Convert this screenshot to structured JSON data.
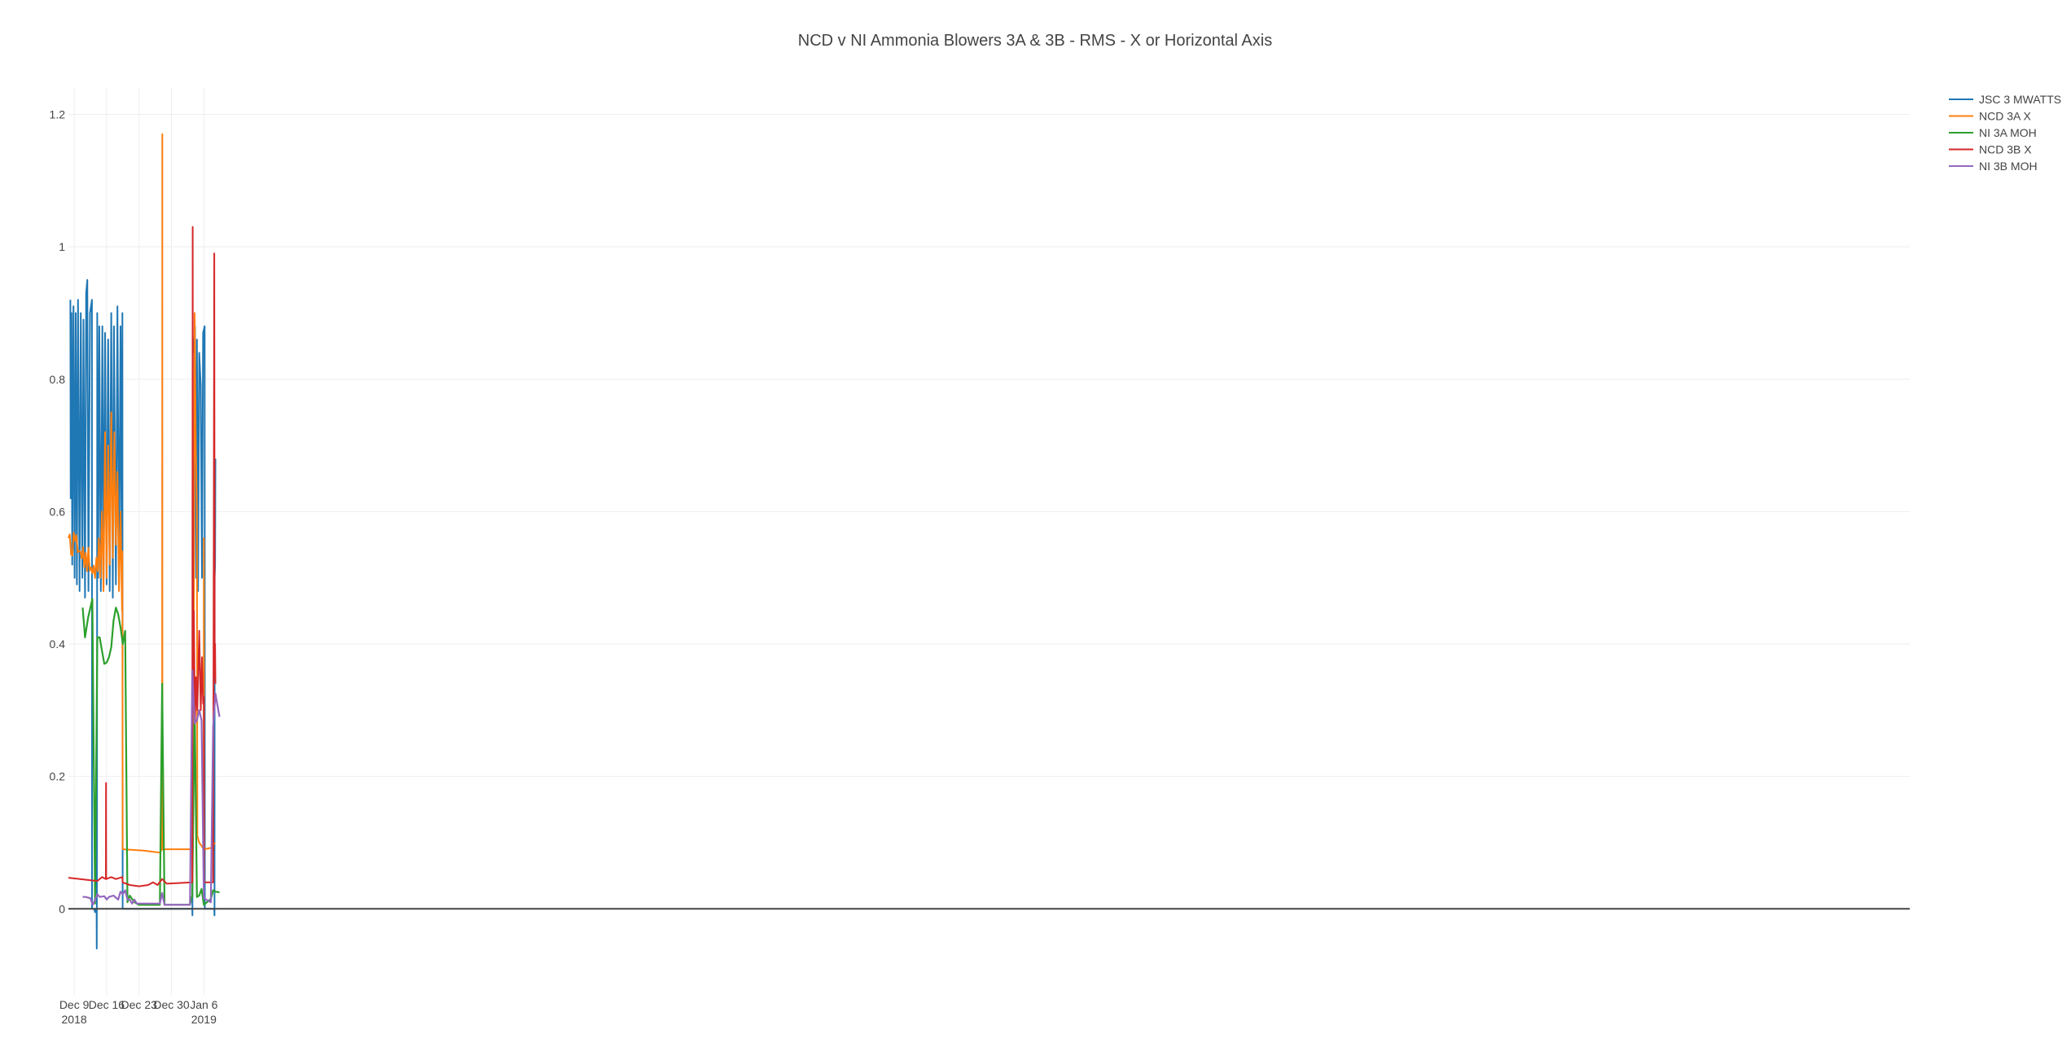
{
  "chart_data": {
    "type": "line",
    "title": "NCD v NI Ammonia Blowers 3A & 3B - RMS - X or Horizontal Axis",
    "xlabel": "",
    "ylabel": "",
    "x_range": [
      "2017-12-07 18:00",
      "2019-01-09 09:00"
    ],
    "ylim": [
      -0.13,
      1.24
    ],
    "grid": true,
    "legend_position": "top-right",
    "y_ticks": [
      {
        "value": 0,
        "label": "0"
      },
      {
        "value": 0.2,
        "label": "0.2"
      },
      {
        "value": 0.4,
        "label": "0.4"
      },
      {
        "value": 0.6,
        "label": "0.6"
      },
      {
        "value": 0.8,
        "label": "0.8"
      },
      {
        "value": 1,
        "label": "1"
      },
      {
        "value": 1.2,
        "label": "1.2"
      }
    ],
    "x_ticks": [
      {
        "date": "2017-12-09",
        "label": "Dec 9",
        "sublabel": "2018"
      },
      {
        "date": "2017-12-16",
        "label": "Dec 16",
        "sublabel": ""
      },
      {
        "date": "2017-12-23",
        "label": "Dec 23",
        "sublabel": ""
      },
      {
        "date": "2017-12-30",
        "label": "Dec 30",
        "sublabel": ""
      },
      {
        "date": "2018-01-06",
        "label": "Jan 6",
        "sublabel": "2019"
      }
    ],
    "series": [
      {
        "name": "JSC 3 MWATTS",
        "color": "#1f77b4",
        "style": "dense",
        "points": [
          [
            "2017-12-08 04:00",
            0.92
          ],
          [
            "2017-12-08 06:00",
            0.62
          ],
          [
            "2017-12-08 10:00",
            0.9
          ],
          [
            "2017-12-08 14:00",
            0.52
          ],
          [
            "2017-12-08 20:00",
            0.91
          ],
          [
            "2017-12-09 02:00",
            0.5
          ],
          [
            "2017-12-09 08:00",
            0.9
          ],
          [
            "2017-12-09 14:00",
            0.49
          ],
          [
            "2017-12-09 20:00",
            0.92
          ],
          [
            "2017-12-10 04:00",
            0.48
          ],
          [
            "2017-12-10 10:00",
            0.9
          ],
          [
            "2017-12-10 18:00",
            0.5
          ],
          [
            "2017-12-11 00:00",
            0.89
          ],
          [
            "2017-12-11 08:00",
            0.47
          ],
          [
            "2017-12-11 14:00",
            0.93
          ],
          [
            "2017-12-11 20:00",
            0.95
          ],
          [
            "2017-12-12 02:00",
            0.48
          ],
          [
            "2017-12-12 10:00",
            0.9
          ],
          [
            "2017-12-12 20:00",
            0.92
          ],
          [
            "2017-12-12 20:30",
            0.0
          ],
          [
            "2017-12-13 08:00",
            0.0
          ],
          [
            "2017-12-13 12:00",
            -0.005
          ],
          [
            "2017-12-13 16:00",
            0.0
          ],
          [
            "2017-12-13 20:00",
            0.0
          ],
          [
            "2017-12-13 21:00",
            -0.06
          ],
          [
            "2017-12-13 22:00",
            0.1
          ],
          [
            "2017-12-13 23:30",
            0.9
          ],
          [
            "2017-12-14 04:00",
            0.5
          ],
          [
            "2017-12-14 10:00",
            0.88
          ],
          [
            "2017-12-14 18:00",
            0.48
          ],
          [
            "2017-12-15 02:00",
            0.88
          ],
          [
            "2017-12-15 08:00",
            0.5
          ],
          [
            "2017-12-15 16:00",
            0.87
          ],
          [
            "2017-12-16 00:00",
            0.49
          ],
          [
            "2017-12-16 08:00",
            0.86
          ],
          [
            "2017-12-16 16:00",
            0.48
          ],
          [
            "2017-12-17 00:00",
            0.9
          ],
          [
            "2017-12-17 08:00",
            0.47
          ],
          [
            "2017-12-17 14:00",
            0.88
          ],
          [
            "2017-12-18 00:00",
            0.49
          ],
          [
            "2017-12-18 08:00",
            0.91
          ],
          [
            "2017-12-18 16:00",
            0.5
          ],
          [
            "2017-12-19 00:00",
            0.88
          ],
          [
            "2017-12-19 06:00",
            0.52
          ],
          [
            "2017-12-19 10:00",
            0.9
          ],
          [
            "2017-12-19 11:00",
            0.0
          ],
          [
            "2017-12-27 08:00",
            0.0
          ],
          [
            "2018-01-03 12:00",
            0.0
          ],
          [
            "2018-01-03 13:00",
            -0.01
          ],
          [
            "2018-01-03 14:00",
            0.86
          ],
          [
            "2018-01-03 20:00",
            0.84
          ],
          [
            "2018-01-04 02:00",
            0.88
          ],
          [
            "2018-01-04 08:00",
            0.5
          ],
          [
            "2018-01-04 12:00",
            0.86
          ],
          [
            "2018-01-04 18:00",
            0.48
          ],
          [
            "2018-01-05 00:00",
            0.84
          ],
          [
            "2018-01-05 08:00",
            0.79
          ],
          [
            "2018-01-05 14:00",
            0.5
          ],
          [
            "2018-01-05 20:00",
            0.87
          ],
          [
            "2018-01-06 04:00",
            0.88
          ],
          [
            "2018-01-06 05:00",
            0.0
          ],
          [
            "2018-01-08 06:00",
            0.0
          ],
          [
            "2018-01-08 07:00",
            -0.01
          ],
          [
            "2018-01-08 08:00",
            0.5
          ],
          [
            "2018-01-08 10:00",
            0.52
          ],
          [
            "2018-01-08 12:00",
            0.68
          ]
        ]
      },
      {
        "name": "NCD 3A X",
        "color": "#ff7f0e",
        "style": "dense",
        "points": [
          [
            "2017-12-07 18:00",
            0.56
          ],
          [
            "2017-12-14 02:00",
            0.51
          ],
          [
            "2017-12-14 08:00",
            0.56
          ],
          [
            "2017-12-14 16:00",
            0.5
          ],
          [
            "2017-12-15 00:00",
            0.6
          ],
          [
            "2017-12-15 08:00",
            0.48
          ],
          [
            "2017-12-15 16:00",
            0.72
          ],
          [
            "2017-12-16 00:00",
            0.5
          ],
          [
            "2017-12-16 08:00",
            0.7
          ],
          [
            "2017-12-16 16:00",
            0.52
          ],
          [
            "2017-12-17 00:00",
            0.75
          ],
          [
            "2017-12-17 08:00",
            0.53
          ],
          [
            "2017-12-17 16:00",
            0.72
          ],
          [
            "2017-12-18 00:00",
            0.55
          ],
          [
            "2017-12-18 08:00",
            0.66
          ],
          [
            "2017-12-18 16:00",
            0.48
          ],
          [
            "2017-12-19 00:00",
            0.6
          ],
          [
            "2017-12-19 08:00",
            0.45
          ],
          [
            "2017-12-19 10:00",
            0.54
          ],
          [
            "2017-12-19 11:00",
            0.09
          ],
          [
            "2017-12-24 00:00",
            0.088
          ],
          [
            "2017-12-27 12:00",
            0.085
          ],
          [
            "2017-12-28 00:00",
            0.09
          ],
          [
            "2017-12-28 00:30",
            1.17
          ],
          [
            "2017-12-28 01:00",
            0.09
          ],
          [
            "2018-01-03 12:00",
            0.09
          ],
          [
            "2018-01-03 18:00",
            0.18
          ],
          [
            "2018-01-04 00:00",
            0.9
          ],
          [
            "2018-01-04 06:00",
            0.7
          ],
          [
            "2018-01-04 12:00",
            0.6
          ],
          [
            "2018-01-04 14:00",
            0.11
          ],
          [
            "2018-01-05 00:00",
            0.1
          ],
          [
            "2018-01-05 12:00",
            0.095
          ],
          [
            "2018-01-05 23:00",
            0.09
          ],
          [
            "2018-01-06 00:00",
            0.56
          ],
          [
            "2018-01-06 01:00",
            0.09
          ],
          [
            "2018-01-07 12:00",
            0.092
          ],
          [
            "2018-01-08 10:00",
            0.1
          ]
        ]
      },
      {
        "name": "NI 3A MOH",
        "color": "#2ca02c",
        "style": "line",
        "points": [
          [
            "2017-12-10 20:00",
            0.455
          ],
          [
            "2017-12-11 08:00",
            0.41
          ],
          [
            "2017-12-12 00:00",
            0.44
          ],
          [
            "2017-12-12 22:00",
            0.468
          ],
          [
            "2017-12-13 12:00",
            0.008
          ],
          [
            "2017-12-14 00:00",
            0.41
          ],
          [
            "2017-12-14 12:00",
            0.41
          ],
          [
            "2017-12-15 00:00",
            0.39
          ],
          [
            "2017-12-15 12:00",
            0.37
          ],
          [
            "2017-12-16 00:00",
            0.372
          ],
          [
            "2017-12-16 12:00",
            0.38
          ],
          [
            "2017-12-17 00:00",
            0.395
          ],
          [
            "2017-12-17 12:00",
            0.435
          ],
          [
            "2017-12-18 00:00",
            0.455
          ],
          [
            "2017-12-18 12:00",
            0.445
          ],
          [
            "2017-12-19 00:00",
            0.425
          ],
          [
            "2017-12-19 12:00",
            0.4
          ],
          [
            "2017-12-20 00:00",
            0.42
          ],
          [
            "2017-12-20 12:00",
            0.01
          ],
          [
            "2017-12-21 00:00",
            0.02
          ],
          [
            "2017-12-22 00:00",
            0.01
          ],
          [
            "2017-12-23 00:00",
            0.006
          ],
          [
            "2017-12-27 12:00",
            0.006
          ],
          [
            "2017-12-28 00:00",
            0.34
          ],
          [
            "2017-12-28 12:00",
            0.006
          ],
          [
            "2018-01-03 00:00",
            0.006
          ],
          [
            "2018-01-03 12:00",
            0.02
          ],
          [
            "2018-01-04 00:00",
            0.31
          ],
          [
            "2018-01-04 12:00",
            0.018
          ],
          [
            "2018-01-05 00:00",
            0.02
          ],
          [
            "2018-01-05 12:00",
            0.03
          ],
          [
            "2018-01-06 00:00",
            0.006
          ],
          [
            "2018-01-07 12:00",
            0.015
          ],
          [
            "2018-01-08 00:00",
            0.028
          ],
          [
            "2018-01-08 12:00",
            0.026
          ],
          [
            "2018-01-09 09:00",
            0.025
          ]
        ]
      },
      {
        "name": "NCD 3B X",
        "color": "#d62728",
        "style": "dense",
        "points": [
          [
            "2017-12-07 18:00",
            0.047
          ],
          [
            "2017-12-14 00:00",
            0.042
          ],
          [
            "2017-12-15 00:00",
            0.048
          ],
          [
            "2017-12-15 20:00",
            0.045
          ],
          [
            "2017-12-15 21:00",
            0.19
          ],
          [
            "2017-12-15 22:00",
            0.045
          ],
          [
            "2017-12-17 00:00",
            0.048
          ],
          [
            "2017-12-18 00:00",
            0.045
          ],
          [
            "2017-12-19 10:00",
            0.048
          ],
          [
            "2017-12-19 11:00",
            0.04
          ],
          [
            "2017-12-21 00:00",
            0.036
          ],
          [
            "2017-12-23 00:00",
            0.034
          ],
          [
            "2017-12-25 00:00",
            0.036
          ],
          [
            "2017-12-26 00:00",
            0.04
          ],
          [
            "2017-12-27 00:00",
            0.036
          ],
          [
            "2017-12-28 00:00",
            0.045
          ],
          [
            "2017-12-29 00:00",
            0.038
          ],
          [
            "2018-01-03 12:00",
            0.04
          ],
          [
            "2018-01-03 14:00",
            1.03
          ],
          [
            "2018-01-03 16:00",
            0.3
          ],
          [
            "2018-01-03 20:00",
            0.45
          ],
          [
            "2018-01-04 02:00",
            0.28
          ],
          [
            "2018-01-04 08:00",
            0.35
          ],
          [
            "2018-01-04 14:00",
            0.3
          ],
          [
            "2018-01-05 00:00",
            0.42
          ],
          [
            "2018-01-05 08:00",
            0.3
          ],
          [
            "2018-01-05 14:00",
            0.38
          ],
          [
            "2018-01-05 20:00",
            0.31
          ],
          [
            "2018-01-06 00:00",
            0.32
          ],
          [
            "2018-01-06 01:00",
            0.04
          ],
          [
            "2018-01-08 00:00",
            0.04
          ],
          [
            "2018-01-08 06:00",
            0.99
          ],
          [
            "2018-01-08 08:00",
            0.35
          ],
          [
            "2018-01-08 10:00",
            0.4
          ],
          [
            "2018-01-08 12:00",
            0.34
          ]
        ]
      },
      {
        "name": "NI 3B MOH",
        "color": "#9467bd",
        "style": "line",
        "points": [
          [
            "2017-12-10 20:00",
            0.018
          ],
          [
            "2017-12-11 12:00",
            0.018
          ],
          [
            "2017-12-12 12:00",
            0.016
          ],
          [
            "2017-12-13 00:00",
            0.006
          ],
          [
            "2017-12-14 00:00",
            0.022
          ],
          [
            "2017-12-14 12:00",
            0.018
          ],
          [
            "2017-12-15 12:00",
            0.019
          ],
          [
            "2017-12-16 00:00",
            0.014
          ],
          [
            "2017-12-16 12:00",
            0.018
          ],
          [
            "2017-12-17 12:00",
            0.02
          ],
          [
            "2017-12-18 12:00",
            0.014
          ],
          [
            "2017-12-19 00:00",
            0.026
          ],
          [
            "2017-12-19 12:00",
            0.022
          ],
          [
            "2017-12-20 00:00",
            0.028
          ],
          [
            "2017-12-20 12:00",
            0.014
          ],
          [
            "2017-12-21 00:00",
            0.014
          ],
          [
            "2017-12-21 12:00",
            0.008
          ],
          [
            "2017-12-22 00:00",
            0.014
          ],
          [
            "2017-12-22 12:00",
            0.008
          ],
          [
            "2017-12-27 12:00",
            0.008
          ],
          [
            "2017-12-28 00:00",
            0.024
          ],
          [
            "2017-12-28 12:00",
            0.006
          ],
          [
            "2018-01-03 00:00",
            0.006
          ],
          [
            "2018-01-03 12:00",
            0.36
          ],
          [
            "2018-01-04 00:00",
            0.28
          ],
          [
            "2018-01-04 12:00",
            0.285
          ],
          [
            "2018-01-05 00:00",
            0.3
          ],
          [
            "2018-01-05 12:00",
            0.285
          ],
          [
            "2018-01-06 00:00",
            0.016
          ],
          [
            "2018-01-07 12:00",
            0.01
          ],
          [
            "2018-01-08 00:00",
            0.275
          ],
          [
            "2018-01-08 12:00",
            0.325
          ],
          [
            "2018-01-09 09:00",
            0.29
          ]
        ]
      }
    ]
  }
}
